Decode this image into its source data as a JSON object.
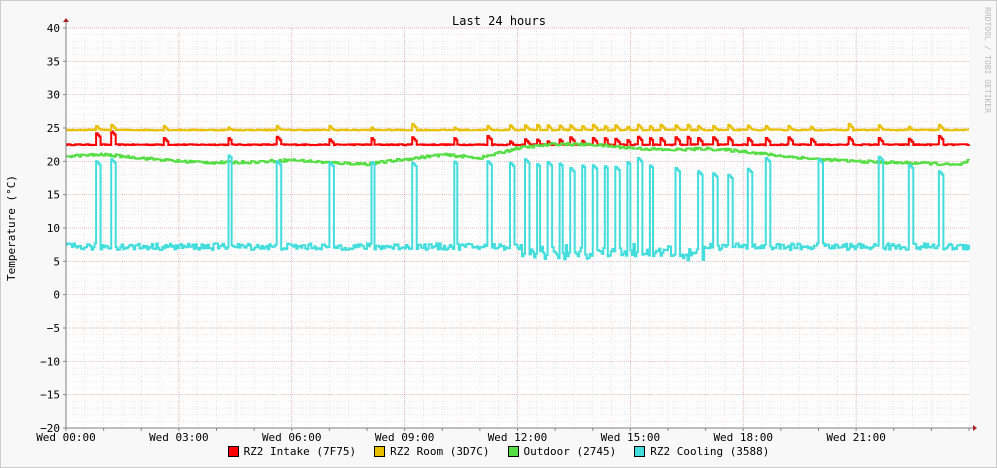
{
  "chart_data": {
    "type": "line",
    "title": "Last 24 hours",
    "ylabel": "Temperature (°C)",
    "watermark": "RRDTOOL / TOBI OETIKER",
    "ylim": [
      -20,
      40
    ],
    "yticks": [
      40,
      35,
      30,
      25,
      20,
      15,
      10,
      5,
      0,
      -5,
      -10,
      -15,
      -20
    ],
    "xlim_hours": [
      0,
      24
    ],
    "xticks": [
      {
        "hour": 0,
        "label": "Wed 00:00"
      },
      {
        "hour": 3,
        "label": "Wed 03:00"
      },
      {
        "hour": 6,
        "label": "Wed 06:00"
      },
      {
        "hour": 9,
        "label": "Wed 09:00"
      },
      {
        "hour": 12,
        "label": "Wed 12:00"
      },
      {
        "hour": 15,
        "label": "Wed 15:00"
      },
      {
        "hour": 18,
        "label": "Wed 18:00"
      },
      {
        "hour": 21,
        "label": "Wed 21:00"
      }
    ],
    "grid": true,
    "legend_position": "bottom",
    "series": [
      {
        "name": "RZ2 Intake (7F75)",
        "color": "#ff0000",
        "baseline": 22.5,
        "spike_hours": [
          0.8,
          1.2,
          2.6,
          4.3,
          5.6,
          7.0,
          8.1,
          9.2,
          10.3,
          11.2,
          11.8,
          12.2,
          12.5,
          12.8,
          13.1,
          13.4,
          13.7,
          14.0,
          14.3,
          14.6,
          14.9,
          15.2,
          15.5,
          15.8,
          16.2,
          16.5,
          16.8,
          17.2,
          17.6,
          18.1,
          18.6,
          19.2,
          19.8,
          20.8,
          21.6,
          22.4,
          23.2
        ],
        "spike_values": [
          24.2,
          24.5,
          23.5,
          23.6,
          23.7,
          23.3,
          23.6,
          23.6,
          23.6,
          23.8,
          23.0,
          23.3,
          23.4,
          23.0,
          23.4,
          23.6,
          23.2,
          23.5,
          23.6,
          23.4,
          23.3,
          23.7,
          23.6,
          23.5,
          23.6,
          23.8,
          23.5,
          23.6,
          23.6,
          23.6,
          23.5,
          23.6,
          23.4,
          23.6,
          23.5,
          23.4,
          23.8
        ]
      },
      {
        "name": "RZ2 Room (3D7C)",
        "color": "#e8c000",
        "baseline": 24.7,
        "spike_hours": [
          0.8,
          1.2,
          2.6,
          4.3,
          5.6,
          7.0,
          8.1,
          9.2,
          10.3,
          11.2,
          11.8,
          12.2,
          12.5,
          12.8,
          13.1,
          13.4,
          13.7,
          14.0,
          14.3,
          14.6,
          14.9,
          15.2,
          15.5,
          15.8,
          16.2,
          16.5,
          16.8,
          17.2,
          17.6,
          18.1,
          18.6,
          19.2,
          19.8,
          20.8,
          21.6,
          22.4,
          23.2
        ],
        "spike_values": [
          25.3,
          25.5,
          25.3,
          25.2,
          25.3,
          25.3,
          25.2,
          25.6,
          25.2,
          25.3,
          25.4,
          25.4,
          25.6,
          25.4,
          25.5,
          25.4,
          25.4,
          25.5,
          25.4,
          25.4,
          25.3,
          25.5,
          25.4,
          25.5,
          25.4,
          25.6,
          25.3,
          25.3,
          25.5,
          25.5,
          25.3,
          25.3,
          25.2,
          25.6,
          25.4,
          25.2,
          25.5
        ]
      },
      {
        "name": "Outdoor (2745)",
        "color": "#55dd44",
        "hours": [
          0,
          1,
          2,
          3,
          4,
          5,
          6,
          7,
          8,
          9,
          10,
          11,
          12,
          13,
          14,
          15,
          16,
          17,
          18,
          19,
          20,
          21,
          22,
          23,
          23.7,
          24
        ],
        "values": [
          20.8,
          21.0,
          20.5,
          20.0,
          19.8,
          19.9,
          20.2,
          19.8,
          19.6,
          20.3,
          21.0,
          20.5,
          22.0,
          22.6,
          22.5,
          22.0,
          21.7,
          21.9,
          21.5,
          20.8,
          20.3,
          20.0,
          19.8,
          19.7,
          19.4,
          20.1
        ]
      },
      {
        "name": "RZ2 Cooling (3588)",
        "color": "#44dddd",
        "baseline": 7.2,
        "spike_hours": [
          0.8,
          1.2,
          4.3,
          5.6,
          7.0,
          8.1,
          9.2,
          10.3,
          11.2,
          11.8,
          12.2,
          12.5,
          12.8,
          13.1,
          13.4,
          13.7,
          14.0,
          14.3,
          14.6,
          14.9,
          15.2,
          15.5,
          16.2,
          16.8,
          17.2,
          17.6,
          18.1,
          18.6,
          20.0,
          21.6,
          22.4,
          23.2
        ],
        "spike_values": [
          20.0,
          20.3,
          21.0,
          20.0,
          19.8,
          20.0,
          19.8,
          20.1,
          20.0,
          19.8,
          20.3,
          19.7,
          19.9,
          19.8,
          19.0,
          19.5,
          19.4,
          19.4,
          19.2,
          20.0,
          20.5,
          19.5,
          19.0,
          18.5,
          18.2,
          18.0,
          19.0,
          20.5,
          20.3,
          20.7,
          19.5,
          18.5
        ]
      }
    ]
  }
}
